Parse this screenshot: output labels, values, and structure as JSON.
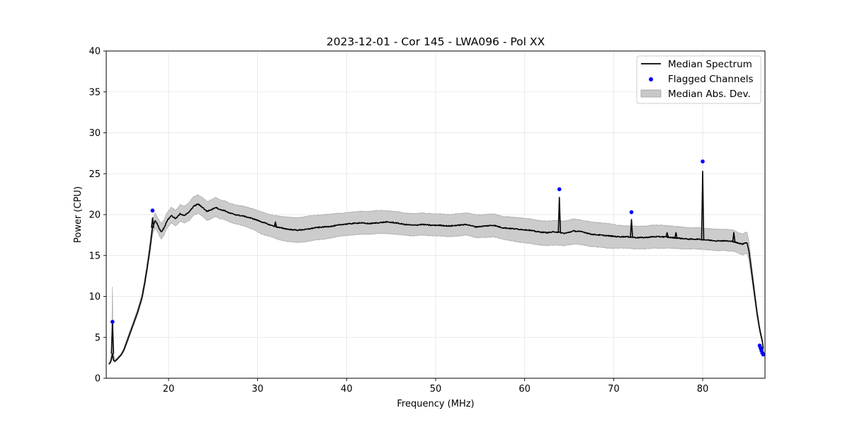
{
  "chart_data": {
    "type": "line",
    "title": "2023-12-01 - Cor 145 - LWA096 - Pol XX",
    "xlabel": "Frequency (MHz)",
    "ylabel": "Power (CPU)",
    "xlim": [
      13.0,
      87.0
    ],
    "ylim": [
      0,
      40
    ],
    "xticks": [
      20,
      30,
      40,
      50,
      60,
      70,
      80
    ],
    "yticks": [
      0,
      5,
      10,
      15,
      20,
      25,
      30,
      35,
      40
    ],
    "grid": true,
    "legend_position": "top-right",
    "legend": [
      {
        "label": "Median Spectrum",
        "kind": "line",
        "color": "#000000"
      },
      {
        "label": "Flagged Channels",
        "kind": "scatter",
        "color": "#0000ff"
      },
      {
        "label": "Median Abs. Dev.",
        "kind": "band",
        "color": "#bfbfbf"
      }
    ],
    "series": [
      {
        "name": "Median Spectrum",
        "color": "#000000",
        "x": [
          13.3,
          13.5,
          13.6,
          13.7,
          13.75,
          13.8,
          13.9,
          14.0,
          14.3,
          14.7,
          15.0,
          15.5,
          16.0,
          16.5,
          17.0,
          17.3,
          17.6,
          17.9,
          18.2,
          18.5,
          18.8,
          19.0,
          19.2,
          19.5,
          19.8,
          20.3,
          20.8,
          21.3,
          21.8,
          22.3,
          22.8,
          23.3,
          23.8,
          24.3,
          24.8,
          25.3,
          25.8,
          26.3,
          26.8,
          27.5,
          28.5,
          29.5,
          30.5,
          31.5,
          32.5,
          33.5,
          34.5,
          35.5,
          36.5,
          37.5,
          38.5,
          39.5,
          40.5,
          41.5,
          42.5,
          43.5,
          44.5,
          45.5,
          46.5,
          47.5,
          48.5,
          49.5,
          50.5,
          51.5,
          52.5,
          53.5,
          54.5,
          55.5,
          56.5,
          57.5,
          58.5,
          59.5,
          60.5,
          61.5,
          62.5,
          63.5,
          64.5,
          65.5,
          66.5,
          67.5,
          68.5,
          69.5,
          70.5,
          71.5,
          72.5,
          73.5,
          74.5,
          75.5,
          76.5,
          77.5,
          78.5,
          79.5,
          80.5,
          81.5,
          82.5,
          83.5,
          84.0,
          84.5,
          84.8,
          85.0,
          85.2,
          85.5,
          85.8,
          86.1,
          86.4,
          86.7,
          86.8
        ],
        "y": [
          1.7,
          2.0,
          2.5,
          3.0,
          2.7,
          2.3,
          2.1,
          2.1,
          2.4,
          2.9,
          3.5,
          5.0,
          6.5,
          8.0,
          9.8,
          11.5,
          13.5,
          15.8,
          18.4,
          19.3,
          18.7,
          18.2,
          17.9,
          18.4,
          19.2,
          19.9,
          19.5,
          20.1,
          19.9,
          20.3,
          21.0,
          21.3,
          20.9,
          20.4,
          20.6,
          20.9,
          20.6,
          20.5,
          20.2,
          20.0,
          19.8,
          19.5,
          19.1,
          18.7,
          18.4,
          18.2,
          18.1,
          18.2,
          18.4,
          18.5,
          18.6,
          18.8,
          18.9,
          19.0,
          18.9,
          19.0,
          19.1,
          19.0,
          18.8,
          18.7,
          18.8,
          18.7,
          18.7,
          18.6,
          18.7,
          18.8,
          18.5,
          18.6,
          18.7,
          18.4,
          18.3,
          18.2,
          18.1,
          17.9,
          17.8,
          17.9,
          17.7,
          18.0,
          17.9,
          17.6,
          17.5,
          17.4,
          17.3,
          17.3,
          17.2,
          17.2,
          17.3,
          17.3,
          17.2,
          17.1,
          17.0,
          17.0,
          16.9,
          16.8,
          16.8,
          16.7,
          16.5,
          16.4,
          16.6,
          16.5,
          15.5,
          13.0,
          10.5,
          8.0,
          6.0,
          4.5,
          3.6
        ]
      }
    ],
    "spikes": [
      {
        "x": 13.7,
        "peak": 6.9
      },
      {
        "x": 18.2,
        "peak": 19.6
      },
      {
        "x": 32.0,
        "peak": 19.1
      },
      {
        "x": 63.9,
        "peak": 22.1
      },
      {
        "x": 72.0,
        "peak": 19.4
      },
      {
        "x": 76.0,
        "peak": 17.8
      },
      {
        "x": 77.0,
        "peak": 17.8
      },
      {
        "x": 80.0,
        "peak": 25.3
      },
      {
        "x": 83.5,
        "peak": 17.8
      }
    ],
    "mad_band": {
      "name": "Median Abs. Dev.",
      "color": "#bfbfbf",
      "x": [
        13.3,
        13.5,
        13.6,
        13.7,
        13.75,
        13.8,
        13.9,
        14.0,
        14.3,
        14.7,
        15.0,
        15.5,
        16.0,
        16.5,
        17.0,
        17.3,
        17.6,
        17.9,
        18.2,
        18.5,
        18.8,
        19.0,
        19.2,
        19.5,
        19.8,
        20.3,
        20.8,
        21.3,
        21.8,
        22.3,
        22.8,
        23.3,
        23.8,
        24.3,
        24.8,
        25.3,
        25.8,
        26.3,
        26.8,
        27.5,
        28.5,
        29.5,
        30.5,
        31.5,
        32.5,
        33.5,
        34.5,
        35.5,
        36.5,
        37.5,
        38.5,
        39.5,
        40.5,
        41.5,
        42.5,
        43.5,
        44.5,
        45.5,
        46.5,
        47.5,
        48.5,
        49.5,
        50.5,
        51.5,
        52.5,
        53.5,
        54.5,
        55.5,
        56.5,
        57.5,
        58.5,
        59.5,
        60.5,
        61.5,
        62.5,
        63.5,
        64.5,
        65.5,
        66.5,
        67.5,
        68.5,
        69.5,
        70.5,
        71.5,
        72.5,
        73.5,
        74.5,
        75.5,
        76.5,
        77.5,
        78.5,
        79.5,
        80.5,
        81.5,
        82.5,
        83.5,
        84.0,
        84.5,
        84.8,
        85.0,
        85.2,
        85.5,
        85.8,
        86.1,
        86.4,
        86.7,
        86.8
      ],
      "lower": [
        1.7,
        1.9,
        2.2,
        2.5,
        2.4,
        2.1,
        2.0,
        2.0,
        2.3,
        2.8,
        3.3,
        4.7,
        6.2,
        7.7,
        9.4,
        11.0,
        13.0,
        15.1,
        17.6,
        18.4,
        17.8,
        17.3,
        17.0,
        17.5,
        18.3,
        19.0,
        18.6,
        19.2,
        19.0,
        19.3,
        19.9,
        20.2,
        19.8,
        19.3,
        19.5,
        19.8,
        19.5,
        19.4,
        19.1,
        18.9,
        18.6,
        18.2,
        17.6,
        17.3,
        16.9,
        16.7,
        16.6,
        16.7,
        16.9,
        17.0,
        17.2,
        17.4,
        17.5,
        17.6,
        17.6,
        17.7,
        17.7,
        17.6,
        17.5,
        17.4,
        17.5,
        17.4,
        17.4,
        17.3,
        17.4,
        17.5,
        17.2,
        17.2,
        17.3,
        17.0,
        16.8,
        16.6,
        16.5,
        16.3,
        16.2,
        16.3,
        16.2,
        16.4,
        16.3,
        16.1,
        16.0,
        15.9,
        15.9,
        15.9,
        15.8,
        15.8,
        15.9,
        15.9,
        15.9,
        15.8,
        15.8,
        15.8,
        15.7,
        15.6,
        15.6,
        15.5,
        15.3,
        15.1,
        15.2,
        15.3,
        14.4,
        12.2,
        9.9,
        7.5,
        5.6,
        4.3,
        3.4
      ],
      "upper": [
        1.9,
        2.3,
        3.5,
        11.2,
        6.0,
        3.4,
        2.6,
        2.3,
        2.6,
        3.1,
        3.8,
        5.4,
        6.9,
        8.4,
        10.3,
        12.1,
        14.2,
        16.6,
        19.4,
        20.2,
        19.6,
        19.2,
        18.9,
        19.4,
        20.2,
        20.9,
        20.5,
        21.2,
        21.0,
        21.5,
        22.2,
        22.4,
        22.1,
        21.6,
        21.8,
        22.1,
        21.8,
        21.7,
        21.4,
        21.2,
        21.0,
        20.7,
        20.3,
        20.0,
        19.8,
        19.7,
        19.6,
        19.8,
        19.9,
        20.0,
        20.1,
        20.2,
        20.3,
        20.4,
        20.4,
        20.5,
        20.5,
        20.4,
        20.2,
        20.1,
        20.2,
        20.1,
        20.1,
        20.0,
        20.1,
        20.2,
        20.0,
        20.0,
        20.1,
        19.8,
        19.7,
        19.6,
        19.5,
        19.3,
        19.2,
        19.3,
        19.2,
        19.5,
        19.3,
        19.1,
        19.0,
        18.9,
        18.7,
        18.6,
        18.6,
        18.6,
        18.7,
        18.7,
        18.6,
        18.5,
        18.4,
        18.4,
        18.3,
        18.2,
        18.2,
        18.1,
        17.8,
        17.6,
        17.9,
        17.8,
        16.7,
        14.0,
        11.3,
        8.6,
        6.4,
        4.8,
        3.8
      ]
    },
    "flagged_channels": {
      "name": "Flagged Channels",
      "color": "#0000ff",
      "points": [
        {
          "x": 13.7,
          "y": 6.9
        },
        {
          "x": 18.2,
          "y": 20.5
        },
        {
          "x": 63.9,
          "y": 23.1
        },
        {
          "x": 72.0,
          "y": 20.3
        },
        {
          "x": 80.0,
          "y": 26.5
        },
        {
          "x": 86.4,
          "y": 4.0
        },
        {
          "x": 86.5,
          "y": 3.7
        },
        {
          "x": 86.6,
          "y": 3.4
        },
        {
          "x": 86.7,
          "y": 3.1
        },
        {
          "x": 86.8,
          "y": 2.9
        }
      ]
    }
  }
}
